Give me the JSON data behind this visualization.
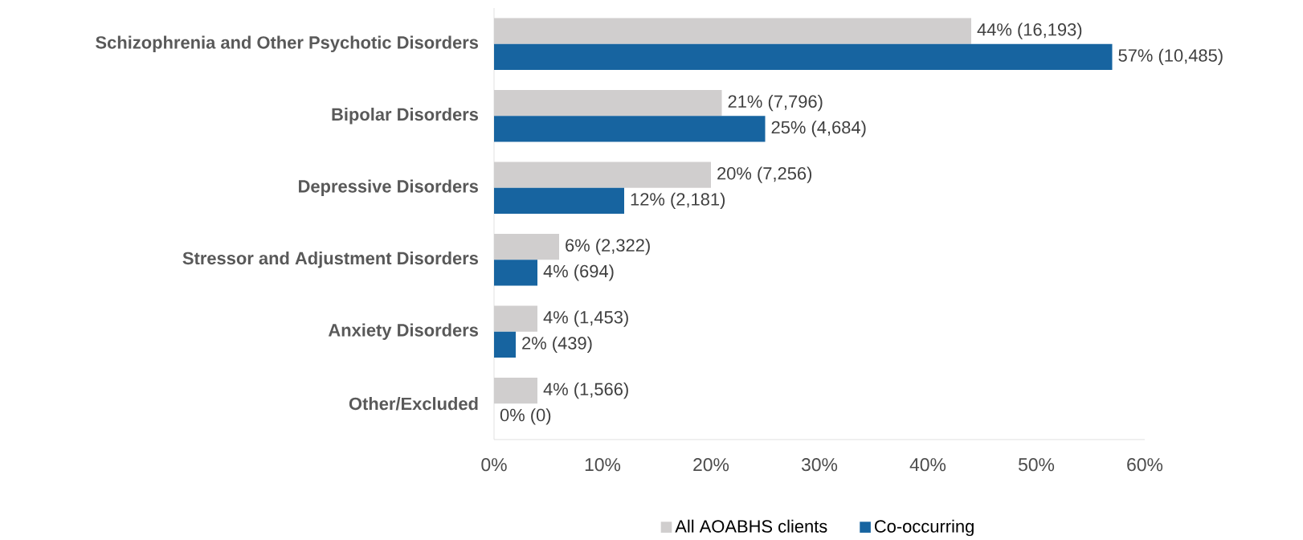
{
  "chart_data": {
    "type": "bar",
    "orientation": "horizontal",
    "categories": [
      "Schizophrenia and Other Psychotic Disorders",
      "Bipolar Disorders",
      "Depressive Disorders",
      "Stressor and Adjustment Disorders",
      "Anxiety Disorders",
      "Other/Excluded"
    ],
    "series": [
      {
        "name": "All AOABHS clients",
        "color": "#d0cece",
        "values": [
          44,
          21,
          20,
          6,
          4,
          4
        ],
        "value_labels": [
          "44% (16,193)",
          "21% (7,796)",
          "20% (7,256)",
          "6% (2,322)",
          "4% (1,453)",
          "4% (1,566)"
        ]
      },
      {
        "name": "Co-occurring",
        "color": "#1764a0",
        "values": [
          57,
          25,
          12,
          4,
          2,
          0
        ],
        "value_labels": [
          "57% (10,485)",
          "25% (4,684)",
          "12% (2,181)",
          "4% (694)",
          "2% (439)",
          "0% (0)"
        ]
      }
    ],
    "xlim": [
      0,
      60
    ],
    "xticks": [
      {
        "value": 0,
        "label": "0%"
      },
      {
        "value": 10,
        "label": "10%"
      },
      {
        "value": 20,
        "label": "20%"
      },
      {
        "value": 30,
        "label": "30%"
      },
      {
        "value": 40,
        "label": "40%"
      },
      {
        "value": 50,
        "label": "50%"
      },
      {
        "value": 60,
        "label": "60%"
      }
    ],
    "legend": "bottom"
  }
}
